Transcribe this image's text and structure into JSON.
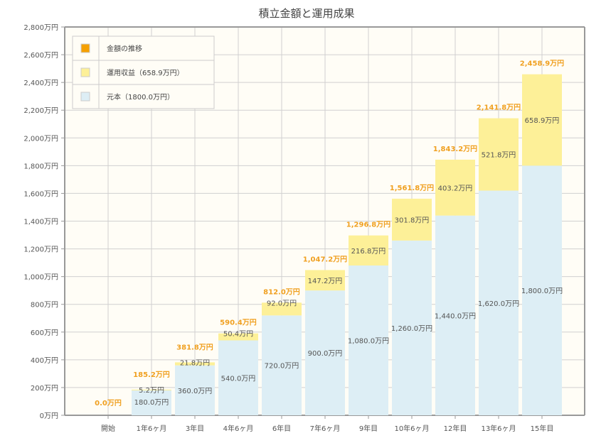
{
  "chart_data": {
    "type": "bar",
    "stacked": true,
    "title": "積立金額と運用成果",
    "xlabel": "",
    "ylabel": "",
    "ylim": [
      0,
      2800
    ],
    "y_tick_step": 200,
    "y_tick_suffix": "万円",
    "value_suffix": "万円",
    "grid": true,
    "legend_position": "top-left",
    "categories": [
      "開始",
      "1年6ヶ月",
      "3年目",
      "4年6ヶ月",
      "6年目",
      "7年6ヶ月",
      "9年目",
      "10年6ヶ月",
      "12年目",
      "13年6ヶ月",
      "15年目"
    ],
    "series": [
      {
        "name": "元本（1800.0万円）",
        "color": "#ddeef5",
        "values": [
          0,
          180,
          360,
          540,
          720,
          900,
          1080,
          1260,
          1440,
          1620,
          1800
        ]
      },
      {
        "name": "運用収益（658.9万円）",
        "color": "#fdf098",
        "values": [
          0,
          5.2,
          21.8,
          50.4,
          92.0,
          147.2,
          216.8,
          301.8,
          403.2,
          521.8,
          658.9
        ]
      }
    ],
    "totals": {
      "name": "金額の推移",
      "color": "#f5a000",
      "values": [
        0,
        185.2,
        381.8,
        590.4,
        812.0,
        1047.2,
        1296.8,
        1561.8,
        1843.2,
        2141.8,
        2458.9
      ]
    },
    "colors": {
      "background": "#fffdf6",
      "grid": "#d0d0d0",
      "total_label": "#f0a020"
    }
  }
}
